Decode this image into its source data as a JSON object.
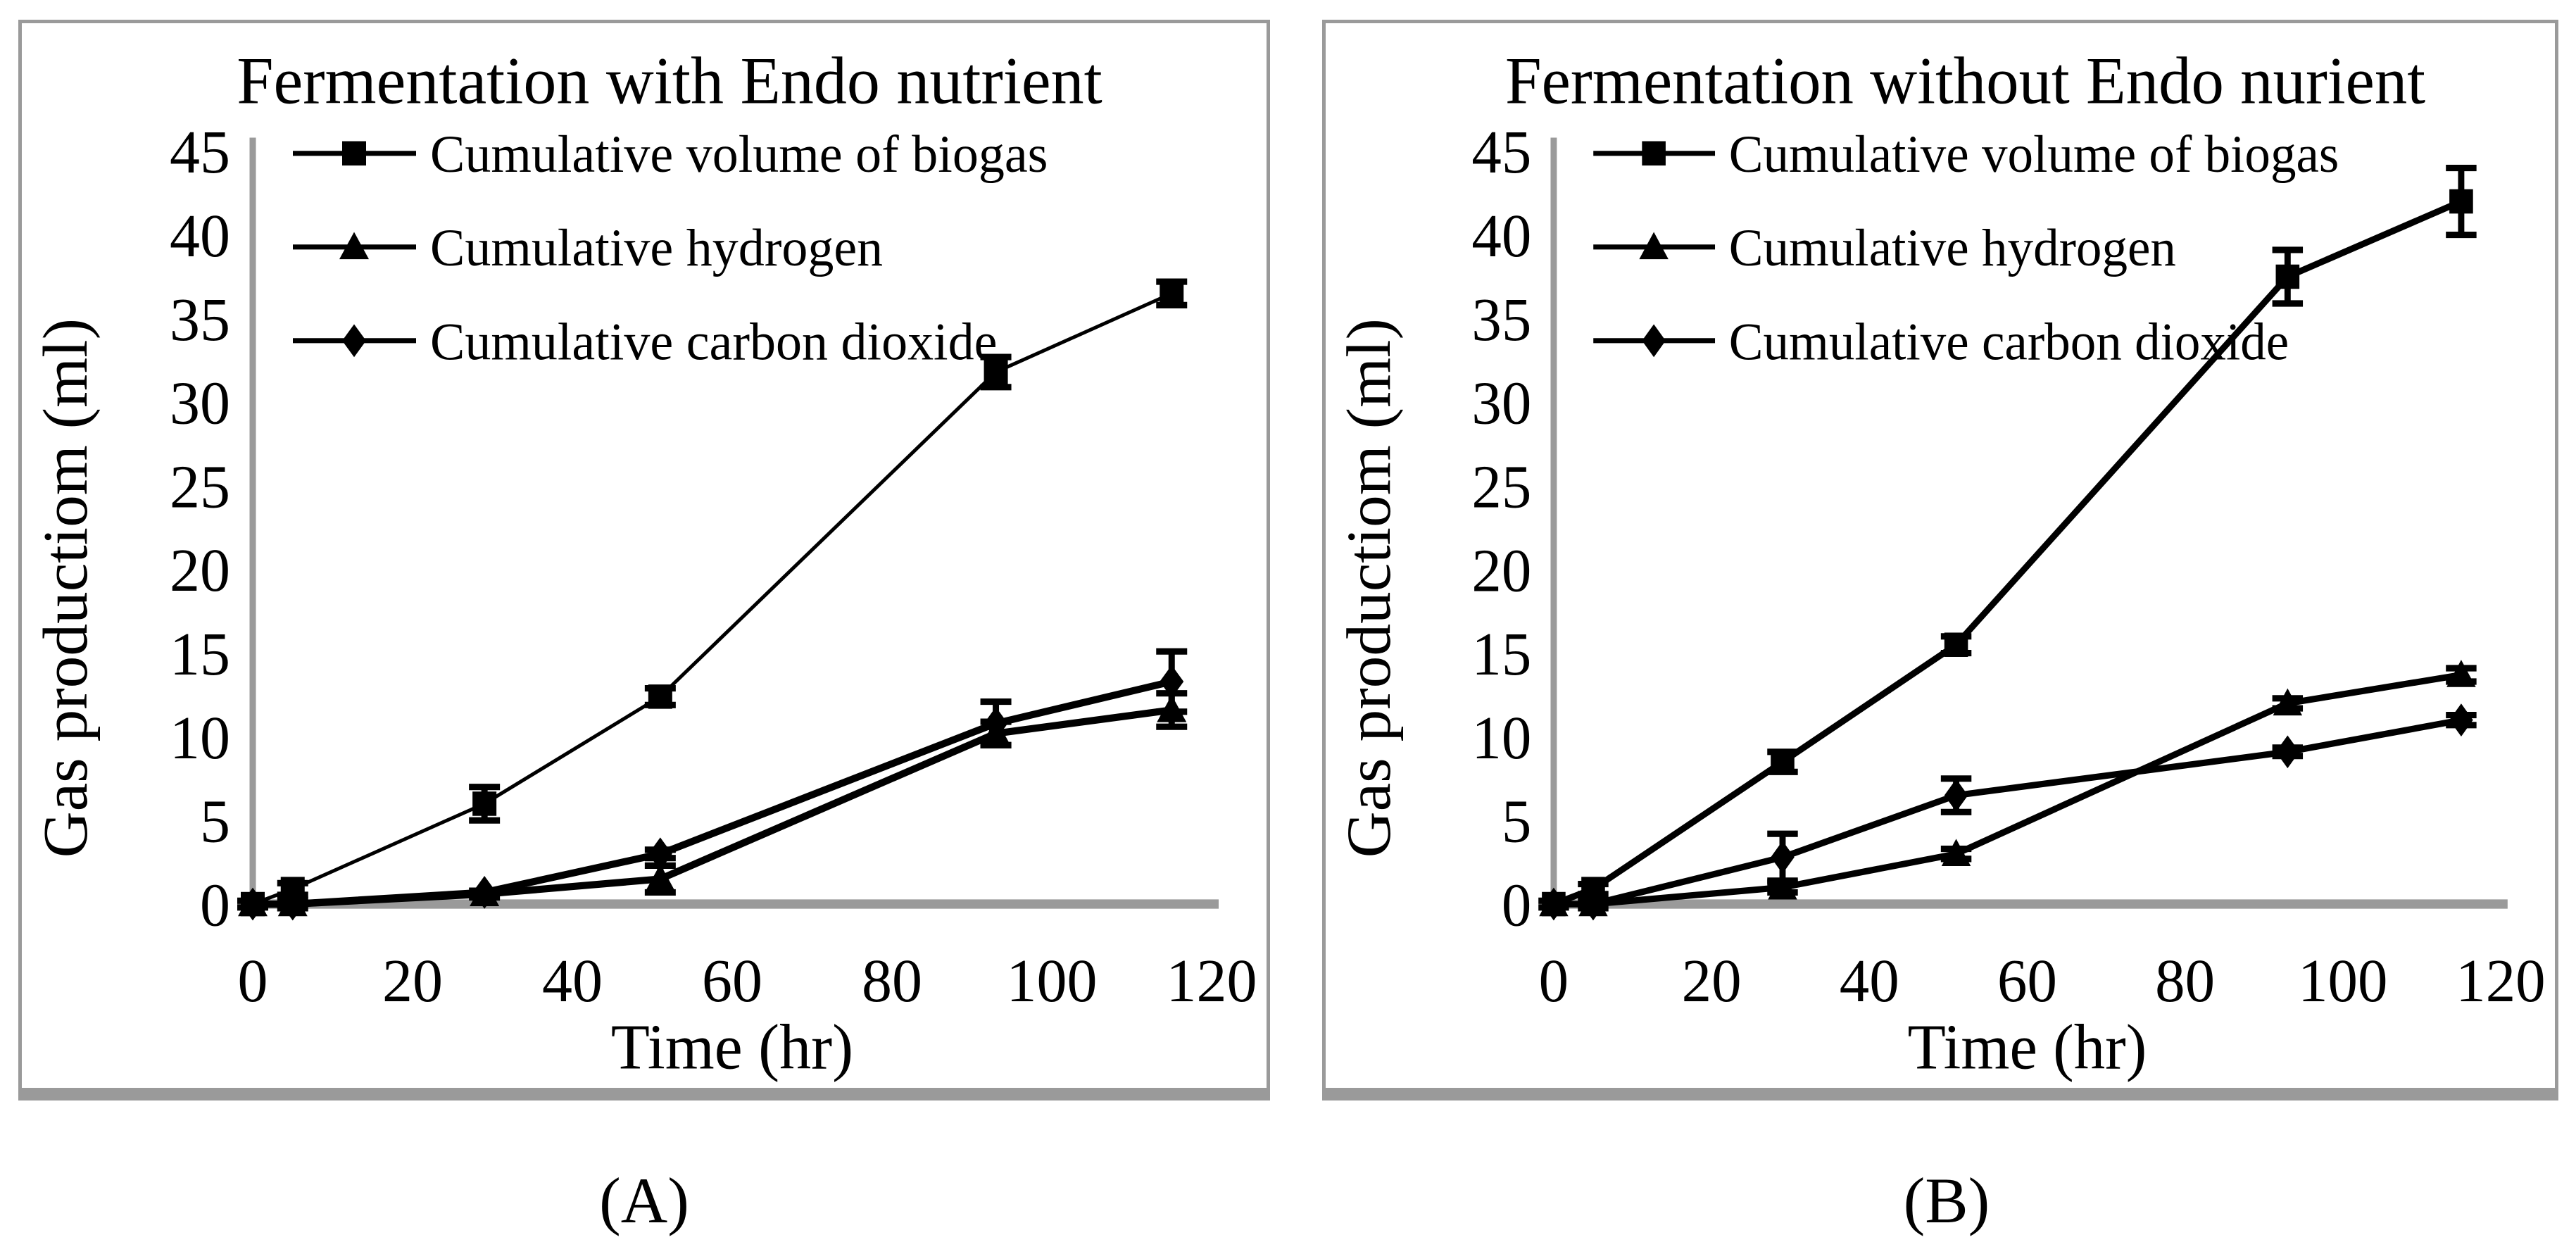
{
  "figure": {
    "background": "#ffffff",
    "panel_border_color": "#9a9a9a",
    "axis_color": "#9a9a9a",
    "series_color": "#000000",
    "text_color": "#000000"
  },
  "captions": [
    "(A)",
    "(B)"
  ],
  "chart_data": [
    {
      "type": "line",
      "title": "Fermentation with Endo nutrient",
      "xlabel": "Time (hr)",
      "ylabel": "Gas productiom (ml)",
      "xlim": [
        0,
        130
      ],
      "ylim": [
        0,
        45
      ],
      "xticks": [
        0,
        20,
        40,
        60,
        80,
        100,
        120
      ],
      "yticks": [
        0,
        5,
        10,
        15,
        20,
        25,
        30,
        35,
        40,
        45
      ],
      "grid": false,
      "legend_position": "upper-left",
      "x": [
        0,
        5,
        29,
        51,
        93,
        115
      ],
      "series": [
        {
          "name": "Cumulative volume of biogas",
          "marker": "square",
          "line_width": 5,
          "values": [
            0,
            0.9,
            6.0,
            12.4,
            31.8,
            36.5
          ],
          "errors": [
            0.2,
            0.35,
            1.0,
            0.5,
            0.9,
            0.7
          ]
        },
        {
          "name": "Cumulative hydrogen",
          "marker": "triangle",
          "line_width": 10,
          "values": [
            0,
            0,
            0.6,
            1.5,
            10.2,
            11.6
          ],
          "errors": [
            0,
            0.25,
            0.2,
            0.8,
            0.7,
            1.0
          ]
        },
        {
          "name": "Cumulative carbon dioxide",
          "marker": "diamond",
          "line_width": 10,
          "values": [
            0,
            0,
            0.7,
            3.0,
            10.8,
            13.3
          ],
          "errors": [
            0,
            0,
            0,
            0.25,
            1.3,
            1.8
          ]
        }
      ]
    },
    {
      "type": "line",
      "title": "Fermentation without Endo nurient",
      "xlabel": "Time (hr)",
      "ylabel": "Gas productiom (ml)",
      "xlim": [
        0,
        130
      ],
      "ylim": [
        0,
        45
      ],
      "xticks": [
        0,
        20,
        40,
        60,
        80,
        100,
        120
      ],
      "yticks": [
        0,
        5,
        10,
        15,
        20,
        25,
        30,
        35,
        40,
        45
      ],
      "grid": false,
      "legend_position": "upper-left",
      "x": [
        0,
        5,
        29,
        51,
        93,
        115
      ],
      "series": [
        {
          "name": "Cumulative volume of biogas",
          "marker": "square",
          "line_width": 9,
          "values": [
            0,
            0.9,
            8.5,
            15.5,
            37.5,
            42.0
          ],
          "errors": [
            0.2,
            0.3,
            0.6,
            0.5,
            1.6,
            2.0
          ]
        },
        {
          "name": "Cumulative hydrogen",
          "marker": "triangle",
          "line_width": 9,
          "values": [
            0,
            0,
            1.0,
            3.0,
            12.0,
            13.7
          ],
          "errors": [
            0,
            0.25,
            0.3,
            0.3,
            0.3,
            0.4
          ]
        },
        {
          "name": "Cumulative carbon dioxide",
          "marker": "diamond",
          "line_width": 9,
          "values": [
            0,
            0,
            2.8,
            6.5,
            9.1,
            11.0
          ],
          "errors": [
            0,
            0,
            1.4,
            1.0,
            0.25,
            0.3
          ]
        }
      ]
    }
  ]
}
